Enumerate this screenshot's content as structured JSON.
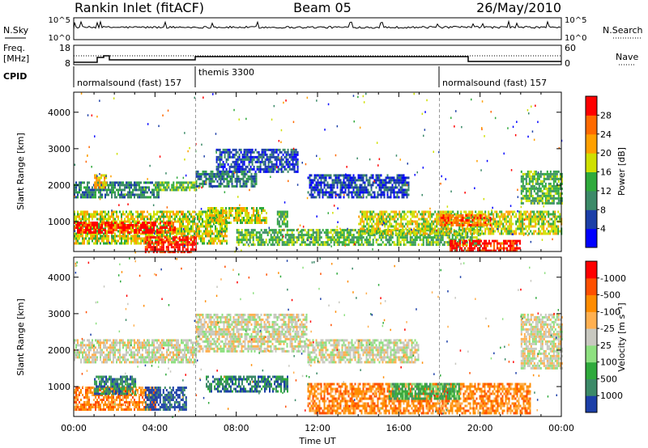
{
  "header": {
    "left": "Rankin Inlet (fitACF)",
    "center": "Beam 05",
    "right": "26/May/2010"
  },
  "panels": {
    "nsky": {
      "label": "N.Sky",
      "left_ticks": [
        "10^5",
        "10^0"
      ],
      "right_ticks": [
        "10^5",
        "10^0"
      ],
      "right_label": "N.Search"
    },
    "freq": {
      "label_lines": [
        "Freq.",
        "[MHz]"
      ],
      "left_ticks": [
        "18",
        "8"
      ],
      "right_ticks": [
        "60",
        "0"
      ],
      "right_label": "Nave"
    },
    "cpid": {
      "label": "CPID",
      "segments": [
        {
          "text": "normalsound (fast) 157",
          "start_h": 0,
          "end_h": 6
        },
        {
          "text": "themis 3300",
          "start_h": 6,
          "end_h": 18
        },
        {
          "text": "normalsound (fast) 157",
          "start_h": 18,
          "end_h": 24
        }
      ]
    }
  },
  "chart_data": [
    {
      "type": "heatmap",
      "name": "power",
      "ylabel": "Slant Range [km]",
      "ylim": [
        180,
        4550
      ],
      "yticks": [
        1000,
        2000,
        3000,
        4000
      ],
      "xlim": [
        0,
        24
      ],
      "colorbar": {
        "label": "Power [dB]",
        "ticks": [
          "4",
          "8",
          "12",
          "16",
          "20",
          "24",
          "28"
        ],
        "colors": [
          "#0000ff",
          "#1c3fa8",
          "#3c8a68",
          "#2faa3c",
          "#cfe000",
          "#ffa000",
          "#ff6a00",
          "#ff0000"
        ]
      },
      "regions": [
        {
          "t0": 0.0,
          "t1": 4.2,
          "r0": 1700,
          "r1": 2100,
          "level": 2
        },
        {
          "t0": 1.0,
          "t1": 1.6,
          "r0": 1950,
          "r1": 2300,
          "level": 5
        },
        {
          "t0": 0.0,
          "t1": 7.5,
          "r0": 400,
          "r1": 1300,
          "level": 4
        },
        {
          "t0": 0.0,
          "t1": 5.0,
          "r0": 700,
          "r1": 1000,
          "level": 7
        },
        {
          "t0": 3.5,
          "t1": 6.0,
          "r0": 200,
          "r1": 600,
          "level": 7
        },
        {
          "t0": 4.0,
          "t1": 6.0,
          "r0": 1850,
          "r1": 2100,
          "level": 3
        },
        {
          "t0": 6.0,
          "t1": 9.0,
          "r0": 2000,
          "r1": 2400,
          "level": 2
        },
        {
          "t0": 7.0,
          "t1": 11.0,
          "r0": 2400,
          "r1": 3000,
          "level": 1
        },
        {
          "t0": 6.5,
          "t1": 9.5,
          "r0": 1000,
          "r1": 1400,
          "level": 4
        },
        {
          "t0": 10.0,
          "t1": 10.5,
          "r0": 850,
          "r1": 1300,
          "level": 3
        },
        {
          "t0": 11.5,
          "t1": 16.5,
          "r0": 1700,
          "r1": 2300,
          "level": 1
        },
        {
          "t0": 8.0,
          "t1": 20.0,
          "r0": 400,
          "r1": 800,
          "level": 3
        },
        {
          "t0": 14.0,
          "t1": 24.0,
          "r0": 700,
          "r1": 1300,
          "level": 4
        },
        {
          "t0": 18.0,
          "t1": 20.5,
          "r0": 900,
          "r1": 1200,
          "level": 6
        },
        {
          "t0": 18.5,
          "t1": 22.0,
          "r0": 200,
          "r1": 500,
          "level": 7
        },
        {
          "t0": 22.0,
          "t1": 24.0,
          "r0": 1500,
          "r1": 2400,
          "level": 3
        }
      ]
    },
    {
      "type": "heatmap",
      "name": "velocity",
      "ylabel": "Slant Range [km]",
      "ylim": [
        180,
        4550
      ],
      "yticks": [
        1000,
        2000,
        3000,
        4000
      ],
      "xlim": [
        0,
        24
      ],
      "xticks": [
        "00:00",
        "04:00",
        "08:00",
        "12:00",
        "16:00",
        "20:00",
        "00:00"
      ],
      "xlabel": "Time UT",
      "colorbar": {
        "label": "Velocity [m s⁻¹]",
        "ticks": [
          "1000",
          "500",
          "100",
          "25",
          "-25",
          "-100",
          "-500",
          "-1000"
        ],
        "colors": [
          "#1c3fa8",
          "#3c8a68",
          "#2faa3c",
          "#8ee080",
          "#c8c8c0",
          "#ffb050",
          "#ff8c00",
          "#ff5000",
          "#ff0000"
        ]
      },
      "regions": [
        {
          "t0": 0.0,
          "t1": 6.0,
          "r0": 1700,
          "r1": 2300,
          "level": 4
        },
        {
          "t0": 6.0,
          "t1": 11.5,
          "r0": 2000,
          "r1": 3000,
          "level": 4
        },
        {
          "t0": 11.5,
          "t1": 17.0,
          "r0": 1700,
          "r1": 2300,
          "level": 4
        },
        {
          "t0": 0.0,
          "t1": 4.0,
          "r0": 400,
          "r1": 1000,
          "level": 6
        },
        {
          "t0": 1.0,
          "t1": 3.0,
          "r0": 800,
          "r1": 1300,
          "level": 1
        },
        {
          "t0": 3.5,
          "t1": 5.5,
          "r0": 400,
          "r1": 1000,
          "level": 0
        },
        {
          "t0": 6.5,
          "t1": 10.5,
          "r0": 900,
          "r1": 1300,
          "level": 1
        },
        {
          "t0": 11.5,
          "t1": 22.5,
          "r0": 300,
          "r1": 1100,
          "level": 6
        },
        {
          "t0": 15.5,
          "t1": 19.0,
          "r0": 700,
          "r1": 1100,
          "level": 2
        },
        {
          "t0": 22.0,
          "t1": 24.0,
          "r0": 1500,
          "r1": 3000,
          "level": 4
        }
      ]
    }
  ]
}
